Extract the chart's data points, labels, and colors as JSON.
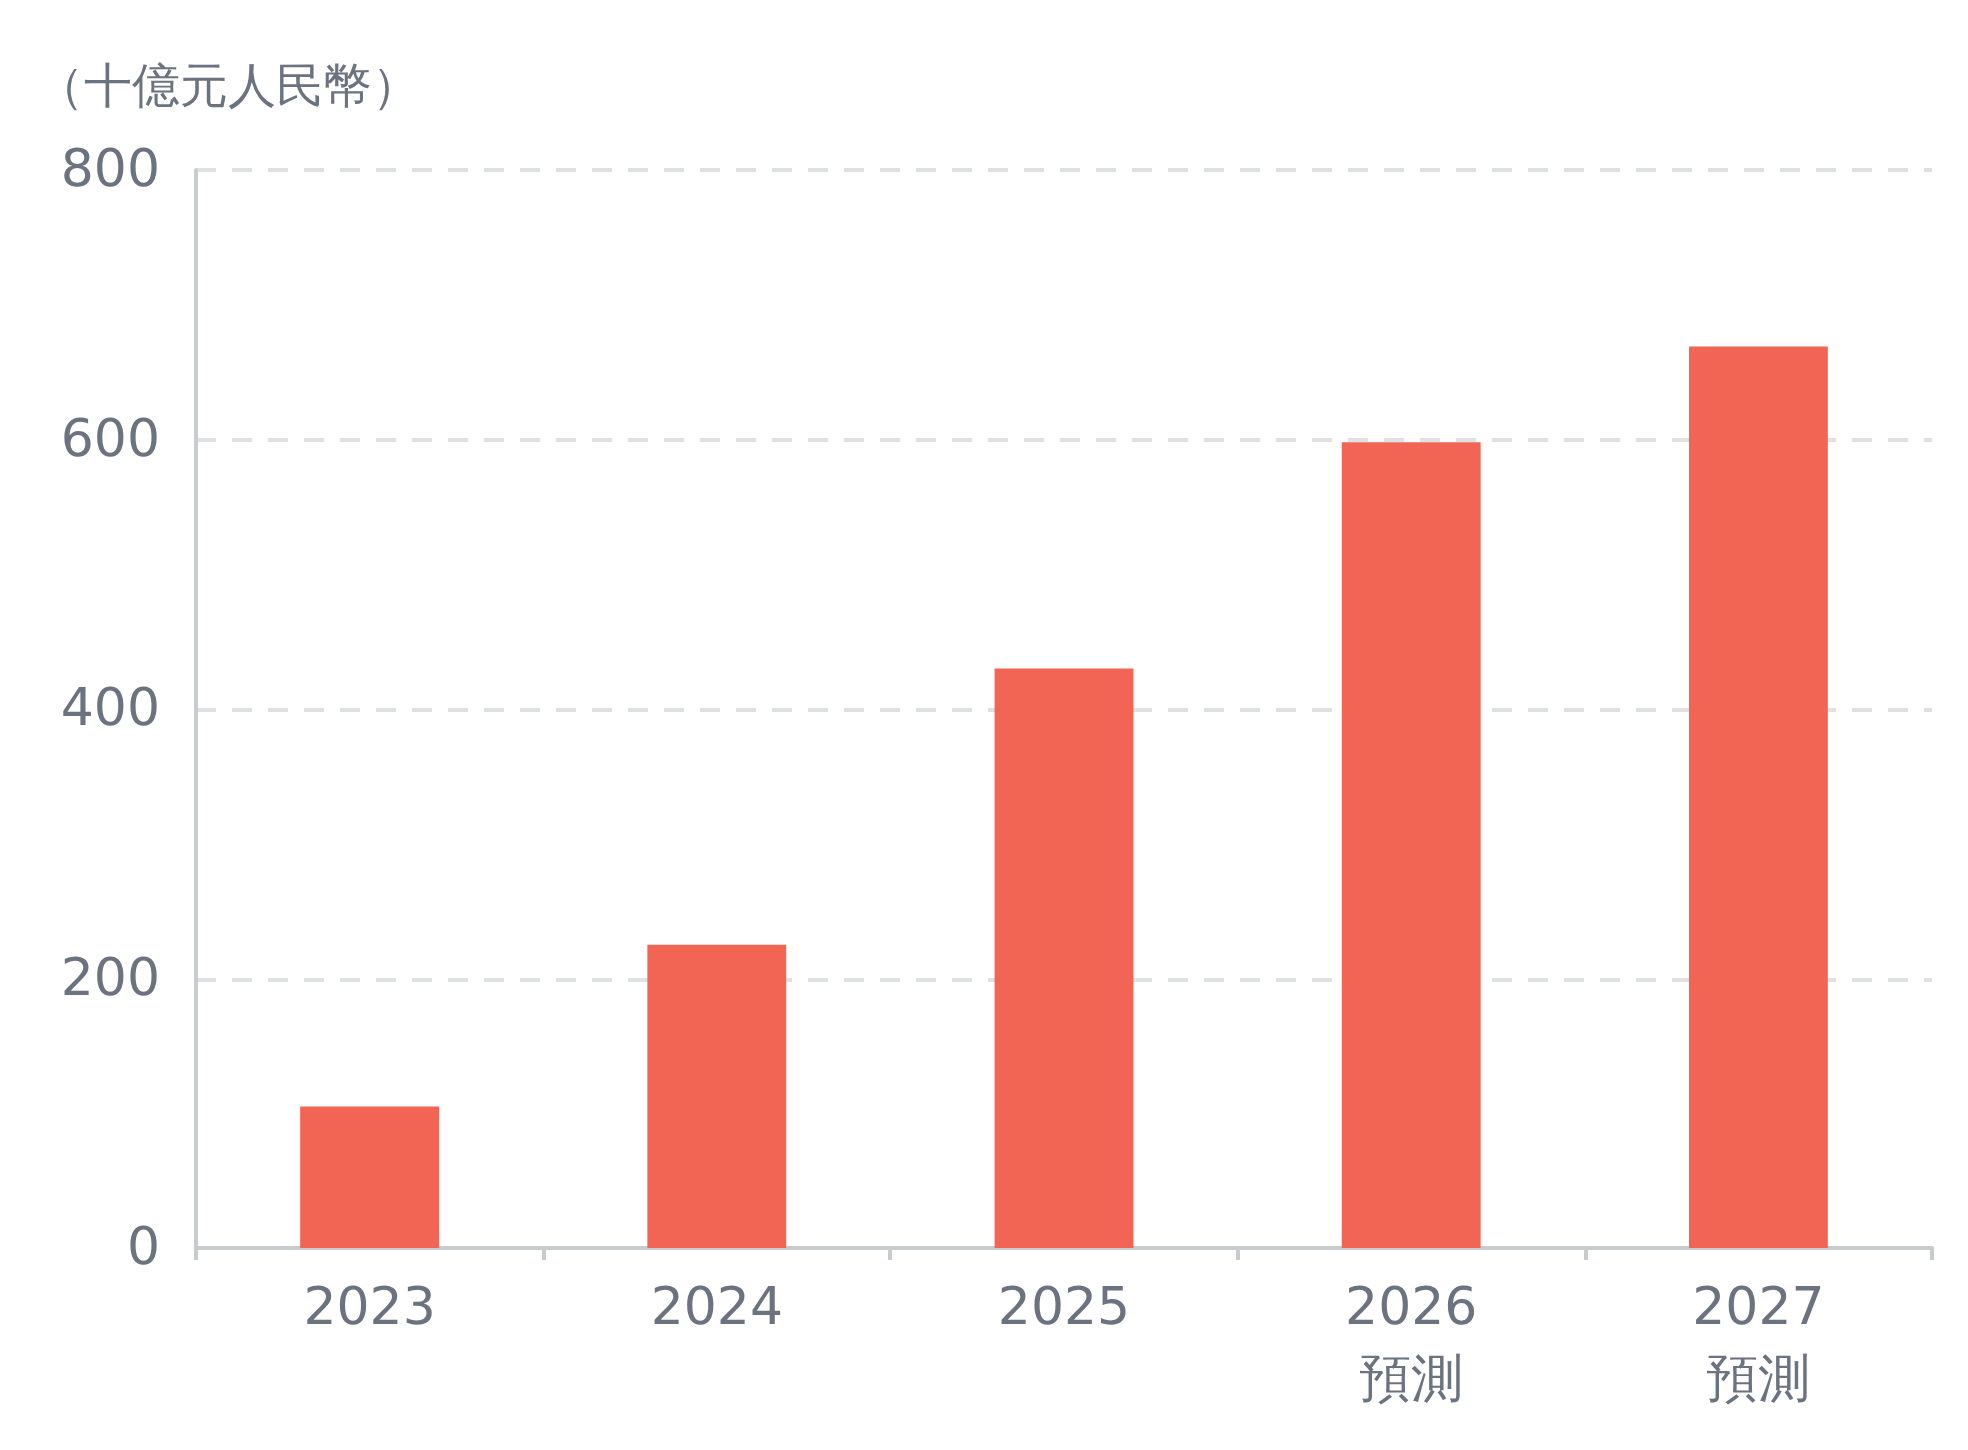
{
  "chart_data": {
    "type": "bar",
    "ylabel": "（十億元人民幣）",
    "categories": [
      "2023",
      "2024",
      "2025",
      "2026\n預測",
      "2027\n預測"
    ],
    "values": [
      105,
      225,
      430,
      598,
      669
    ],
    "color": "#f26555",
    "ylim": [
      0,
      800
    ],
    "yticks": [
      0,
      200,
      400,
      600,
      800
    ],
    "grid": "y"
  }
}
